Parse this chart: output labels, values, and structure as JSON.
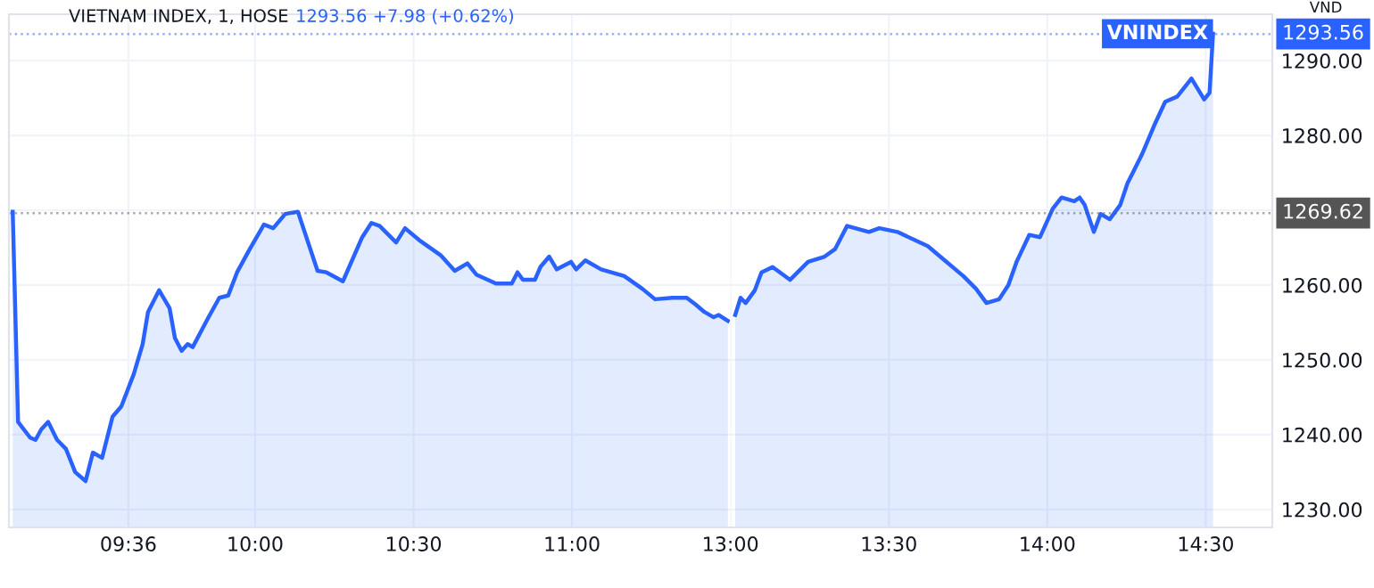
{
  "chart_data": [
    {
      "type": "area",
      "title": "VIETNAM INDEX, 1, HOSE",
      "subtitle": "1293.56 +7.98 (+0.62%)",
      "x": [
        9.235,
        9.252,
        9.29,
        9.307,
        9.325,
        9.347,
        9.375,
        9.403,
        9.432,
        9.465,
        9.488,
        9.517,
        9.55,
        9.578,
        9.617,
        9.645,
        9.662,
        9.697,
        9.73,
        9.747,
        9.768,
        9.787,
        9.803,
        9.853,
        9.887,
        9.915,
        9.943,
        9.983,
        10.028,
        10.057,
        10.095,
        10.135,
        10.197,
        10.225,
        10.277,
        10.338,
        10.367,
        10.393,
        10.445,
        10.473,
        10.518,
        10.585,
        10.63,
        10.67,
        10.698,
        10.76,
        10.81,
        10.828,
        10.845,
        10.883,
        10.9,
        10.928,
        10.952,
        10.997,
        11.013,
        11.042,
        11.092,
        11.165,
        11.222,
        11.262,
        11.317,
        11.362,
        11.39,
        11.418,
        11.447,
        11.463,
        11.492
      ],
      "series": [
        {
          "color": "#2962ff",
          "values": [
            1269.8,
            1241.7,
            1239.6,
            1239.3,
            1240.7,
            1241.7,
            1239.3,
            1238.1,
            1235.0,
            1233.8,
            1237.6,
            1236.9,
            1242.4,
            1243.8,
            1248.1,
            1252.1,
            1256.4,
            1259.3,
            1256.9,
            1252.9,
            1251.2,
            1252.1,
            1251.7,
            1255.7,
            1258.3,
            1258.6,
            1261.7,
            1264.8,
            1268.1,
            1267.6,
            1269.5,
            1269.8,
            1261.9,
            1261.7,
            1260.5,
            1266.4,
            1268.3,
            1267.9,
            1265.7,
            1267.6,
            1266.0,
            1264.0,
            1261.9,
            1262.9,
            1261.4,
            1260.2,
            1260.2,
            1261.7,
            1260.7,
            1260.7,
            1262.4,
            1263.8,
            1262.1,
            1263.1,
            1262.1,
            1263.3,
            1262.1,
            1261.2,
            1259.5,
            1258.1,
            1258.3,
            1258.3,
            1257.4,
            1256.4,
            1255.7,
            1256.0,
            1255.2
          ]
        }
      ],
      "xlim": [
        9.223,
        11.5
      ],
      "xticks": [
        {
          "value": 9.6,
          "label": "09:36"
        },
        {
          "value": 10,
          "label": "10:00"
        },
        {
          "value": 10.5,
          "label": "10:30"
        },
        {
          "value": 11,
          "label": "11:00"
        }
      ],
      "ylim": [
        1227.6,
        1296.2
      ],
      "yticks": [
        1230,
        1240,
        1250,
        1260,
        1270,
        1280,
        1290
      ],
      "ref_lines": [
        {
          "axis": "y",
          "value": 1293.56,
          "color": "#2962ff",
          "line_style": "dotted"
        },
        {
          "axis": "y",
          "value": 1269.62,
          "color": "#555555",
          "line_style": "dotted"
        }
      ],
      "tick_labels": "x",
      "grid": true,
      "legend": false
    },
    {
      "type": "area",
      "annotations": [
        "VND"
      ],
      "x": [
        13.015,
        13.032,
        13.048,
        13.077,
        13.098,
        13.133,
        13.188,
        13.245,
        13.297,
        13.33,
        13.368,
        13.437,
        13.47,
        13.527,
        13.623,
        13.662,
        13.735,
        13.775,
        13.808,
        13.848,
        13.877,
        13.903,
        13.943,
        13.977,
        14.017,
        14.045,
        14.085,
        14.102,
        14.118,
        14.147,
        14.168,
        14.197,
        14.23,
        14.253,
        14.298,
        14.338,
        14.372,
        14.41,
        14.455,
        14.495,
        14.512,
        14.523
      ],
      "series": [
        {
          "name": "VNINDEX",
          "color": "#2962ff",
          "values": [
            1256.0,
            1258.3,
            1257.6,
            1259.3,
            1261.7,
            1262.4,
            1260.7,
            1263.1,
            1263.8,
            1264.8,
            1267.9,
            1267.1,
            1267.6,
            1267.1,
            1265.2,
            1263.8,
            1261.2,
            1259.5,
            1257.6,
            1258.1,
            1260.0,
            1263.1,
            1266.7,
            1266.4,
            1270.2,
            1271.7,
            1271.2,
            1271.7,
            1270.7,
            1267.1,
            1269.5,
            1268.8,
            1270.7,
            1273.6,
            1277.4,
            1281.4,
            1284.5,
            1285.2,
            1287.6,
            1284.8,
            1285.7,
            1293.6
          ]
        }
      ],
      "xlim": [
        13.0,
        14.71
      ],
      "xticks": [
        {
          "value": 13,
          "label": "13:00"
        },
        {
          "value": 13.5,
          "label": "13:30"
        },
        {
          "value": 14,
          "label": "14:00"
        },
        {
          "value": 14.5,
          "label": "14:30"
        }
      ],
      "ylim": [
        1227.6,
        1296.2
      ],
      "yticks": [
        {
          "value": 1230,
          "label": "1230.00"
        },
        {
          "value": 1240,
          "label": "1240.00"
        },
        {
          "value": 1250,
          "label": "1250.00"
        },
        {
          "value": 1260,
          "label": "1260.00"
        },
        {
          "value": 1270,
          "label": null
        },
        {
          "value": 1280,
          "label": "1280.00"
        },
        {
          "value": 1290,
          "label": "1290.00"
        }
      ],
      "ref_lines": [
        {
          "axis": "y",
          "value": 1293.56,
          "label": "1293.56",
          "color": "#2962ff",
          "line_style": "dotted"
        },
        {
          "axis": "y",
          "value": 1269.62,
          "label": "1269.62",
          "color": "#555555",
          "line_style": "dotted"
        }
      ],
      "grid": true,
      "legend": false
    }
  ]
}
